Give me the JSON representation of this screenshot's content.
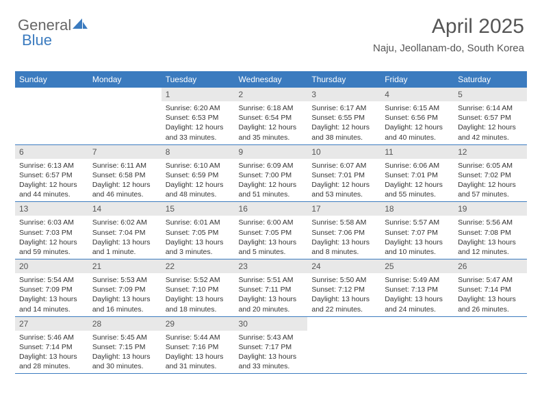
{
  "logo": {
    "part1": "General",
    "part2": "Blue"
  },
  "header": {
    "title": "April 2025",
    "subtitle": "Naju, Jeollanam-do, South Korea"
  },
  "colors": {
    "header_bg": "#3b7bbf",
    "header_fg": "#ffffff",
    "daynum_bg": "#e8e8e8",
    "text": "#333333",
    "row_border": "#3b7bbf"
  },
  "weekdays": [
    "Sunday",
    "Monday",
    "Tuesday",
    "Wednesday",
    "Thursday",
    "Friday",
    "Saturday"
  ],
  "weeks": [
    [
      null,
      null,
      {
        "n": "1",
        "sr": "6:20 AM",
        "ss": "6:53 PM",
        "dl": "12 hours and 33 minutes."
      },
      {
        "n": "2",
        "sr": "6:18 AM",
        "ss": "6:54 PM",
        "dl": "12 hours and 35 minutes."
      },
      {
        "n": "3",
        "sr": "6:17 AM",
        "ss": "6:55 PM",
        "dl": "12 hours and 38 minutes."
      },
      {
        "n": "4",
        "sr": "6:15 AM",
        "ss": "6:56 PM",
        "dl": "12 hours and 40 minutes."
      },
      {
        "n": "5",
        "sr": "6:14 AM",
        "ss": "6:57 PM",
        "dl": "12 hours and 42 minutes."
      }
    ],
    [
      {
        "n": "6",
        "sr": "6:13 AM",
        "ss": "6:57 PM",
        "dl": "12 hours and 44 minutes."
      },
      {
        "n": "7",
        "sr": "6:11 AM",
        "ss": "6:58 PM",
        "dl": "12 hours and 46 minutes."
      },
      {
        "n": "8",
        "sr": "6:10 AM",
        "ss": "6:59 PM",
        "dl": "12 hours and 48 minutes."
      },
      {
        "n": "9",
        "sr": "6:09 AM",
        "ss": "7:00 PM",
        "dl": "12 hours and 51 minutes."
      },
      {
        "n": "10",
        "sr": "6:07 AM",
        "ss": "7:01 PM",
        "dl": "12 hours and 53 minutes."
      },
      {
        "n": "11",
        "sr": "6:06 AM",
        "ss": "7:01 PM",
        "dl": "12 hours and 55 minutes."
      },
      {
        "n": "12",
        "sr": "6:05 AM",
        "ss": "7:02 PM",
        "dl": "12 hours and 57 minutes."
      }
    ],
    [
      {
        "n": "13",
        "sr": "6:03 AM",
        "ss": "7:03 PM",
        "dl": "12 hours and 59 minutes."
      },
      {
        "n": "14",
        "sr": "6:02 AM",
        "ss": "7:04 PM",
        "dl": "13 hours and 1 minute."
      },
      {
        "n": "15",
        "sr": "6:01 AM",
        "ss": "7:05 PM",
        "dl": "13 hours and 3 minutes."
      },
      {
        "n": "16",
        "sr": "6:00 AM",
        "ss": "7:05 PM",
        "dl": "13 hours and 5 minutes."
      },
      {
        "n": "17",
        "sr": "5:58 AM",
        "ss": "7:06 PM",
        "dl": "13 hours and 8 minutes."
      },
      {
        "n": "18",
        "sr": "5:57 AM",
        "ss": "7:07 PM",
        "dl": "13 hours and 10 minutes."
      },
      {
        "n": "19",
        "sr": "5:56 AM",
        "ss": "7:08 PM",
        "dl": "13 hours and 12 minutes."
      }
    ],
    [
      {
        "n": "20",
        "sr": "5:54 AM",
        "ss": "7:09 PM",
        "dl": "13 hours and 14 minutes."
      },
      {
        "n": "21",
        "sr": "5:53 AM",
        "ss": "7:09 PM",
        "dl": "13 hours and 16 minutes."
      },
      {
        "n": "22",
        "sr": "5:52 AM",
        "ss": "7:10 PM",
        "dl": "13 hours and 18 minutes."
      },
      {
        "n": "23",
        "sr": "5:51 AM",
        "ss": "7:11 PM",
        "dl": "13 hours and 20 minutes."
      },
      {
        "n": "24",
        "sr": "5:50 AM",
        "ss": "7:12 PM",
        "dl": "13 hours and 22 minutes."
      },
      {
        "n": "25",
        "sr": "5:49 AM",
        "ss": "7:13 PM",
        "dl": "13 hours and 24 minutes."
      },
      {
        "n": "26",
        "sr": "5:47 AM",
        "ss": "7:14 PM",
        "dl": "13 hours and 26 minutes."
      }
    ],
    [
      {
        "n": "27",
        "sr": "5:46 AM",
        "ss": "7:14 PM",
        "dl": "13 hours and 28 minutes."
      },
      {
        "n": "28",
        "sr": "5:45 AM",
        "ss": "7:15 PM",
        "dl": "13 hours and 30 minutes."
      },
      {
        "n": "29",
        "sr": "5:44 AM",
        "ss": "7:16 PM",
        "dl": "13 hours and 31 minutes."
      },
      {
        "n": "30",
        "sr": "5:43 AM",
        "ss": "7:17 PM",
        "dl": "13 hours and 33 minutes."
      },
      null,
      null,
      null
    ]
  ],
  "labels": {
    "sunrise": "Sunrise: ",
    "sunset": "Sunset: ",
    "daylight": "Daylight: "
  }
}
